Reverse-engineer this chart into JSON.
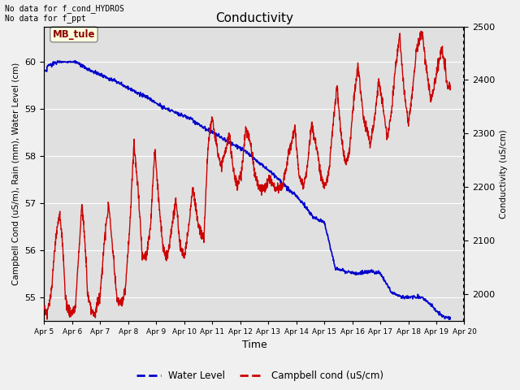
{
  "title": "Conductivity",
  "xlabel": "Time",
  "ylabel_left": "Campbell Cond (uS/m), Rain (mm), Water Level (cm)",
  "ylabel_right": "Conductivity (uS/cm)",
  "top_text": "No data for f_cond_HYDROS\nNo data for f_ppt",
  "annotation_box": "MB_tule",
  "xlim_days": [
    5,
    20
  ],
  "ylim_left": [
    54.5,
    60.75
  ],
  "ylim_right": [
    1950,
    2500
  ],
  "xtick_labels": [
    "Apr 5",
    "Apr 6",
    "Apr 7",
    "Apr 8",
    "Apr 9",
    "Apr 10",
    "Apr 11",
    "Apr 12",
    "Apr 13",
    "Apr 14",
    "Apr 15",
    "Apr 16",
    "Apr 17",
    "Apr 18",
    "Apr 19",
    "Apr 20"
  ],
  "xtick_positions": [
    5,
    6,
    7,
    8,
    9,
    10,
    11,
    12,
    13,
    14,
    15,
    16,
    17,
    18,
    19,
    20
  ],
  "background_color": "#f0f0f0",
  "plot_bg_color": "#e0e0e0",
  "grid_color": "#ffffff",
  "water_level_color": "#0000cc",
  "campbell_cond_color": "#cc0000",
  "water_level_label": "Water Level",
  "campbell_label": "Campbell cond (uS/cm)"
}
